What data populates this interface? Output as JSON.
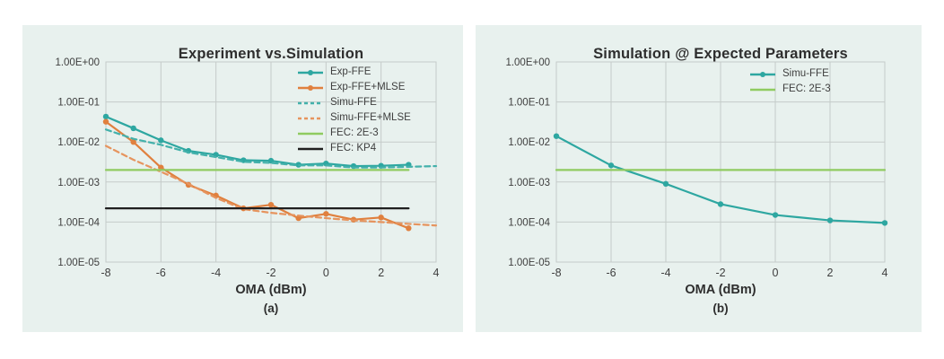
{
  "page": {
    "background": "#ffffff",
    "panel_background": "#e8f1ee",
    "grid_color": "#c5cbc9",
    "text_color": "#3e3e3e"
  },
  "chart_data": [
    {
      "id": "a",
      "type": "line",
      "title": "Experiment vs.Simulation",
      "xlabel": "OMA (dBm)",
      "caption": "(a)",
      "x_range": [
        -8,
        4
      ],
      "x_ticks": [
        -8,
        -6,
        -4,
        -2,
        0,
        2,
        4
      ],
      "y_scale": "log",
      "y_range": [
        1e-05,
        1
      ],
      "y_tick_labels": [
        "1.00E+00",
        "1.00E-01",
        "1.00E-02",
        "1.00E-03",
        "1.00E-04",
        "1.00E-05"
      ],
      "grid": true,
      "legend_position": "top-right",
      "series": [
        {
          "name": "Exp-FFE",
          "color": "#2ea7a1",
          "dash": false,
          "marker": true,
          "x": [
            -8,
            -7,
            -6,
            -5,
            -4,
            -3,
            -2,
            -1,
            0,
            1,
            2,
            3
          ],
          "y": [
            0.043,
            0.022,
            0.011,
            0.006,
            0.0048,
            0.0035,
            0.0034,
            0.0027,
            0.0029,
            0.0025,
            0.00255,
            0.0027
          ]
        },
        {
          "name": "Exp-FFE+MLSE",
          "color": "#e0803e",
          "dash": false,
          "marker": true,
          "x": [
            -8,
            -7,
            -6,
            -5,
            -4,
            -3,
            -2,
            -1,
            0,
            1,
            2,
            3
          ],
          "y": [
            0.032,
            0.01,
            0.0023,
            0.00085,
            0.00046,
            0.00022,
            0.00027,
            0.000125,
            0.00016,
            0.000115,
            0.00013,
            7e-05
          ]
        },
        {
          "name": "Simu-FFE",
          "color": "#43b1ab",
          "dash": true,
          "marker": false,
          "x": [
            -8,
            -7,
            -6,
            -5,
            -4,
            -3,
            -2,
            -1,
            0,
            1,
            2,
            3,
            4
          ],
          "y": [
            0.0205,
            0.012,
            0.0085,
            0.0055,
            0.0042,
            0.0032,
            0.003,
            0.0026,
            0.0026,
            0.0023,
            0.0023,
            0.0024,
            0.0025
          ]
        },
        {
          "name": "Simu-FFE+MLSE",
          "color": "#e6945e",
          "dash": true,
          "marker": false,
          "x": [
            -8,
            -7,
            -6,
            -5,
            -4,
            -3,
            -2,
            -1,
            0,
            1,
            2,
            3,
            4
          ],
          "y": [
            0.008,
            0.0036,
            0.0018,
            0.0009,
            0.0004,
            0.00021,
            0.00017,
            0.000145,
            0.000125,
            0.00011,
            0.0001,
            9e-05,
            8.2e-05
          ]
        },
        {
          "name": "FEC: 2E-3",
          "color": "#8fcb60",
          "dash": false,
          "marker": false,
          "x": [
            -8,
            3
          ],
          "y": [
            0.002,
            0.002
          ]
        },
        {
          "name": "FEC: KP4",
          "color": "#1f1f1f",
          "dash": false,
          "marker": false,
          "x": [
            -8,
            3
          ],
          "y": [
            0.00022,
            0.00022
          ]
        }
      ]
    },
    {
      "id": "b",
      "type": "line",
      "title": "Simulation @ Expected Parameters",
      "xlabel": "OMA (dBm)",
      "caption": "(b)",
      "x_range": [
        -8,
        4
      ],
      "x_ticks": [
        -8,
        -6,
        -4,
        -2,
        0,
        2,
        4
      ],
      "y_scale": "log",
      "y_range": [
        1e-05,
        1
      ],
      "y_tick_labels": [
        "1.00E+00",
        "1.00E-01",
        "1.00E-02",
        "1.00E-03",
        "1.00E-04",
        "1.00E-05"
      ],
      "grid": true,
      "legend_position": "top-right",
      "series": [
        {
          "name": "Simu-FFE",
          "color": "#2ea7a1",
          "dash": false,
          "marker": true,
          "x": [
            -8,
            -6,
            -4,
            -2,
            0,
            2,
            4
          ],
          "y": [
            0.014,
            0.0026,
            0.0009,
            0.00028,
            0.00015,
            0.00011,
            9.5e-05
          ]
        },
        {
          "name": "FEC: 2E-3",
          "color": "#8fcb60",
          "dash": false,
          "marker": false,
          "x": [
            -8,
            4
          ],
          "y": [
            0.002,
            0.002
          ]
        }
      ]
    }
  ]
}
